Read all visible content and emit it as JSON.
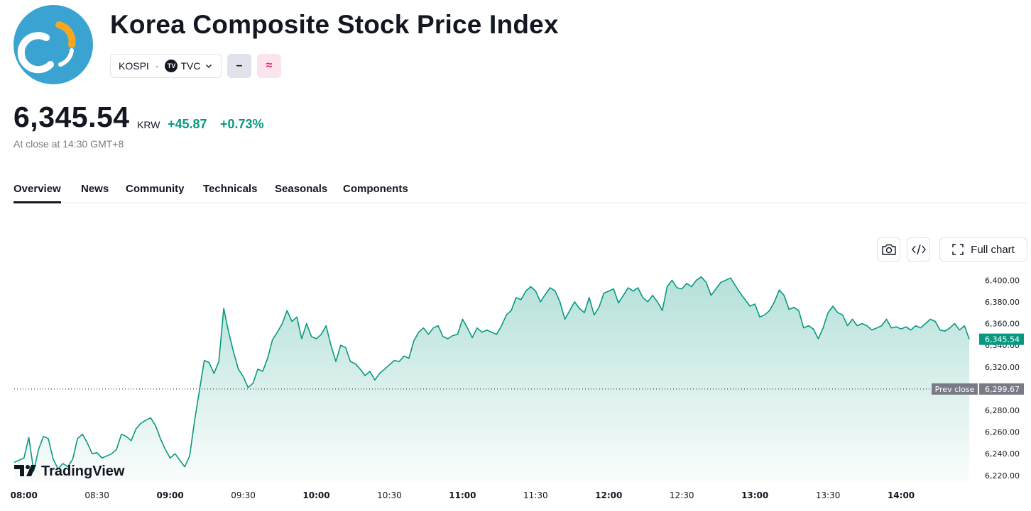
{
  "header": {
    "title": "Korea Composite Stock Price Index",
    "symbol": "KOSPI",
    "separator": "·",
    "exchange": "TVC",
    "exchange_logo_text": "TV",
    "badge_gray": "–",
    "badge_pink": "≈"
  },
  "quote": {
    "price": "6,345.54",
    "currency": "KRW",
    "change": "+45.87",
    "change_percent": "+0.73%",
    "status": "At close at 14:30 GMT+8"
  },
  "tabs": [
    "Overview",
    "News",
    "Community",
    "Technicals",
    "Seasonals",
    "Components"
  ],
  "active_tab": "Overview",
  "toolbar": {
    "full_chart_label": "Full chart"
  },
  "watermark": "TradingView",
  "colors": {
    "accent": "#089981",
    "text": "#131722",
    "muted": "#787b86",
    "prev_close_tag": "#787b86"
  },
  "chart_data": {
    "type": "area",
    "y_ticks": [
      "6,400.00",
      "6,380.00",
      "6,360.00",
      "6,340.00",
      "6,320.00",
      "6,300.00",
      "6,280.00",
      "6,260.00",
      "6,240.00",
      "6,220.00"
    ],
    "ylim": [
      6214,
      6410
    ],
    "x_ticks": [
      {
        "label": "08:00",
        "time": "08:00",
        "bold": true
      },
      {
        "label": "08:30",
        "time": "08:30",
        "bold": false
      },
      {
        "label": "09:00",
        "time": "09:00",
        "bold": true
      },
      {
        "label": "09:30",
        "time": "09:30",
        "bold": false
      },
      {
        "label": "10:00",
        "time": "10:00",
        "bold": true
      },
      {
        "label": "10:30",
        "time": "10:30",
        "bold": false
      },
      {
        "label": "11:00",
        "time": "11:00",
        "bold": true
      },
      {
        "label": "11:30",
        "time": "11:30",
        "bold": false
      },
      {
        "label": "12:00",
        "time": "12:00",
        "bold": true
      },
      {
        "label": "12:30",
        "time": "12:30",
        "bold": false
      },
      {
        "label": "13:00",
        "time": "13:00",
        "bold": true
      },
      {
        "label": "13:30",
        "time": "13:30",
        "bold": false
      },
      {
        "label": "14:00",
        "time": "14:00",
        "bold": true
      }
    ],
    "xlim": [
      "07:56",
      "14:30"
    ],
    "prev_close": 6299.67,
    "prev_close_label": "Prev close",
    "prev_close_value": "6,299.67",
    "last_value": 6345.54,
    "last_value_label": "6,345.54",
    "series": [
      {
        "points": [
          [
            "07:56",
            6232
          ],
          [
            "08:00",
            6236
          ],
          [
            "08:02",
            6255
          ],
          [
            "08:04",
            6224
          ],
          [
            "08:06",
            6244
          ],
          [
            "08:08",
            6256
          ],
          [
            "08:10",
            6254
          ],
          [
            "08:12",
            6235
          ],
          [
            "08:14",
            6226
          ],
          [
            "08:16",
            6231
          ],
          [
            "08:18",
            6228
          ],
          [
            "08:20",
            6235
          ],
          [
            "08:22",
            6254
          ],
          [
            "08:24",
            6258
          ],
          [
            "08:26",
            6250
          ],
          [
            "08:28",
            6240
          ],
          [
            "08:30",
            6241
          ],
          [
            "08:32",
            6236
          ],
          [
            "08:34",
            6238
          ],
          [
            "08:36",
            6240
          ],
          [
            "08:38",
            6244
          ],
          [
            "08:40",
            6258
          ],
          [
            "08:42",
            6256
          ],
          [
            "08:44",
            6252
          ],
          [
            "08:46",
            6263
          ],
          [
            "08:48",
            6268
          ],
          [
            "08:50",
            6271
          ],
          [
            "08:52",
            6273
          ],
          [
            "08:54",
            6266
          ],
          [
            "08:56",
            6254
          ],
          [
            "08:58",
            6244
          ],
          [
            "09:00",
            6236
          ],
          [
            "09:02",
            6240
          ],
          [
            "09:04",
            6234
          ],
          [
            "09:06",
            6228
          ],
          [
            "09:08",
            6238
          ],
          [
            "09:10",
            6270
          ],
          [
            "09:12",
            6298
          ],
          [
            "09:14",
            6326
          ],
          [
            "09:16",
            6324
          ],
          [
            "09:18",
            6314
          ],
          [
            "09:20",
            6325
          ],
          [
            "09:22",
            6374
          ],
          [
            "09:24",
            6352
          ],
          [
            "09:26",
            6334
          ],
          [
            "09:28",
            6318
          ],
          [
            "09:30",
            6311
          ],
          [
            "09:32",
            6301
          ],
          [
            "09:34",
            6305
          ],
          [
            "09:36",
            6318
          ],
          [
            "09:38",
            6316
          ],
          [
            "09:40",
            6328
          ],
          [
            "09:42",
            6345
          ],
          [
            "09:44",
            6352
          ],
          [
            "09:46",
            6360
          ],
          [
            "09:48",
            6372
          ],
          [
            "09:50",
            6362
          ],
          [
            "09:52",
            6366
          ],
          [
            "09:54",
            6346
          ],
          [
            "09:56",
            6360
          ],
          [
            "09:58",
            6348
          ],
          [
            "10:00",
            6346
          ],
          [
            "10:02",
            6350
          ],
          [
            "10:04",
            6358
          ],
          [
            "10:06",
            6340
          ],
          [
            "10:08",
            6325
          ],
          [
            "10:10",
            6340
          ],
          [
            "10:12",
            6338
          ],
          [
            "10:14",
            6325
          ],
          [
            "10:16",
            6323
          ],
          [
            "10:18",
            6318
          ],
          [
            "10:20",
            6312
          ],
          [
            "10:22",
            6316
          ],
          [
            "10:24",
            6308
          ],
          [
            "10:26",
            6314
          ],
          [
            "10:28",
            6318
          ],
          [
            "10:30",
            6322
          ],
          [
            "10:32",
            6326
          ],
          [
            "10:34",
            6325
          ],
          [
            "10:36",
            6330
          ],
          [
            "10:38",
            6328
          ],
          [
            "10:40",
            6344
          ],
          [
            "10:42",
            6352
          ],
          [
            "10:44",
            6356
          ],
          [
            "10:46",
            6350
          ],
          [
            "10:48",
            6356
          ],
          [
            "10:50",
            6358
          ],
          [
            "10:52",
            6348
          ],
          [
            "10:54",
            6346
          ],
          [
            "10:56",
            6349
          ],
          [
            "10:58",
            6350
          ],
          [
            "11:00",
            6364
          ],
          [
            "11:02",
            6356
          ],
          [
            "11:04",
            6347
          ],
          [
            "11:06",
            6356
          ],
          [
            "11:08",
            6352
          ],
          [
            "11:10",
            6354
          ],
          [
            "11:12",
            6352
          ],
          [
            "11:14",
            6350
          ],
          [
            "11:16",
            6358
          ],
          [
            "11:18",
            6368
          ],
          [
            "11:20",
            6372
          ],
          [
            "11:22",
            6384
          ],
          [
            "11:24",
            6382
          ],
          [
            "11:26",
            6390
          ],
          [
            "11:28",
            6394
          ],
          [
            "11:30",
            6390
          ],
          [
            "11:32",
            6380
          ],
          [
            "11:34",
            6387
          ],
          [
            "11:36",
            6393
          ],
          [
            "11:38",
            6390
          ],
          [
            "11:40",
            6380
          ],
          [
            "11:42",
            6364
          ],
          [
            "11:44",
            6372
          ],
          [
            "11:46",
            6380
          ],
          [
            "11:48",
            6374
          ],
          [
            "11:50",
            6370
          ],
          [
            "11:52",
            6384
          ],
          [
            "11:54",
            6368
          ],
          [
            "11:56",
            6375
          ],
          [
            "11:58",
            6388
          ],
          [
            "12:00",
            6390
          ],
          [
            "12:02",
            6392
          ],
          [
            "12:04",
            6379
          ],
          [
            "12:06",
            6386
          ],
          [
            "12:08",
            6393
          ],
          [
            "12:10",
            6390
          ],
          [
            "12:12",
            6393
          ],
          [
            "12:14",
            6384
          ],
          [
            "12:16",
            6380
          ],
          [
            "12:18",
            6386
          ],
          [
            "12:20",
            6380
          ],
          [
            "12:22",
            6372
          ],
          [
            "12:24",
            6394
          ],
          [
            "12:26",
            6400
          ],
          [
            "12:28",
            6393
          ],
          [
            "12:30",
            6392
          ],
          [
            "12:32",
            6397
          ],
          [
            "12:34",
            6394
          ],
          [
            "12:36",
            6400
          ],
          [
            "12:38",
            6403
          ],
          [
            "12:40",
            6398
          ],
          [
            "12:42",
            6386
          ],
          [
            "12:44",
            6392
          ],
          [
            "12:46",
            6398
          ],
          [
            "12:48",
            6400
          ],
          [
            "12:50",
            6402
          ],
          [
            "12:52",
            6395
          ],
          [
            "12:54",
            6388
          ],
          [
            "12:56",
            6382
          ],
          [
            "12:58",
            6376
          ],
          [
            "13:00",
            6378
          ],
          [
            "13:02",
            6366
          ],
          [
            "13:04",
            6368
          ],
          [
            "13:06",
            6372
          ],
          [
            "13:08",
            6380
          ],
          [
            "13:10",
            6391
          ],
          [
            "13:12",
            6386
          ],
          [
            "13:14",
            6373
          ],
          [
            "13:16",
            6375
          ],
          [
            "13:18",
            6372
          ],
          [
            "13:20",
            6356
          ],
          [
            "13:22",
            6358
          ],
          [
            "13:24",
            6355
          ],
          [
            "13:26",
            6346
          ],
          [
            "13:28",
            6356
          ],
          [
            "13:30",
            6370
          ],
          [
            "13:32",
            6376
          ],
          [
            "13:34",
            6370
          ],
          [
            "13:36",
            6368
          ],
          [
            "13:38",
            6358
          ],
          [
            "13:40",
            6364
          ],
          [
            "13:42",
            6358
          ],
          [
            "13:44",
            6360
          ],
          [
            "13:46",
            6358
          ],
          [
            "13:48",
            6354
          ],
          [
            "13:50",
            6356
          ],
          [
            "13:52",
            6358
          ],
          [
            "13:54",
            6364
          ],
          [
            "13:56",
            6356
          ],
          [
            "13:58",
            6357
          ],
          [
            "14:00",
            6355
          ],
          [
            "14:02",
            6357
          ],
          [
            "14:04",
            6354
          ],
          [
            "14:06",
            6358
          ],
          [
            "14:08",
            6356
          ],
          [
            "14:10",
            6360
          ],
          [
            "14:12",
            6364
          ],
          [
            "14:14",
            6362
          ],
          [
            "14:16",
            6354
          ],
          [
            "14:18",
            6353
          ],
          [
            "14:20",
            6356
          ],
          [
            "14:22",
            6360
          ],
          [
            "14:24",
            6354
          ],
          [
            "14:26",
            6358
          ],
          [
            "14:28",
            6345.54
          ]
        ]
      }
    ]
  }
}
